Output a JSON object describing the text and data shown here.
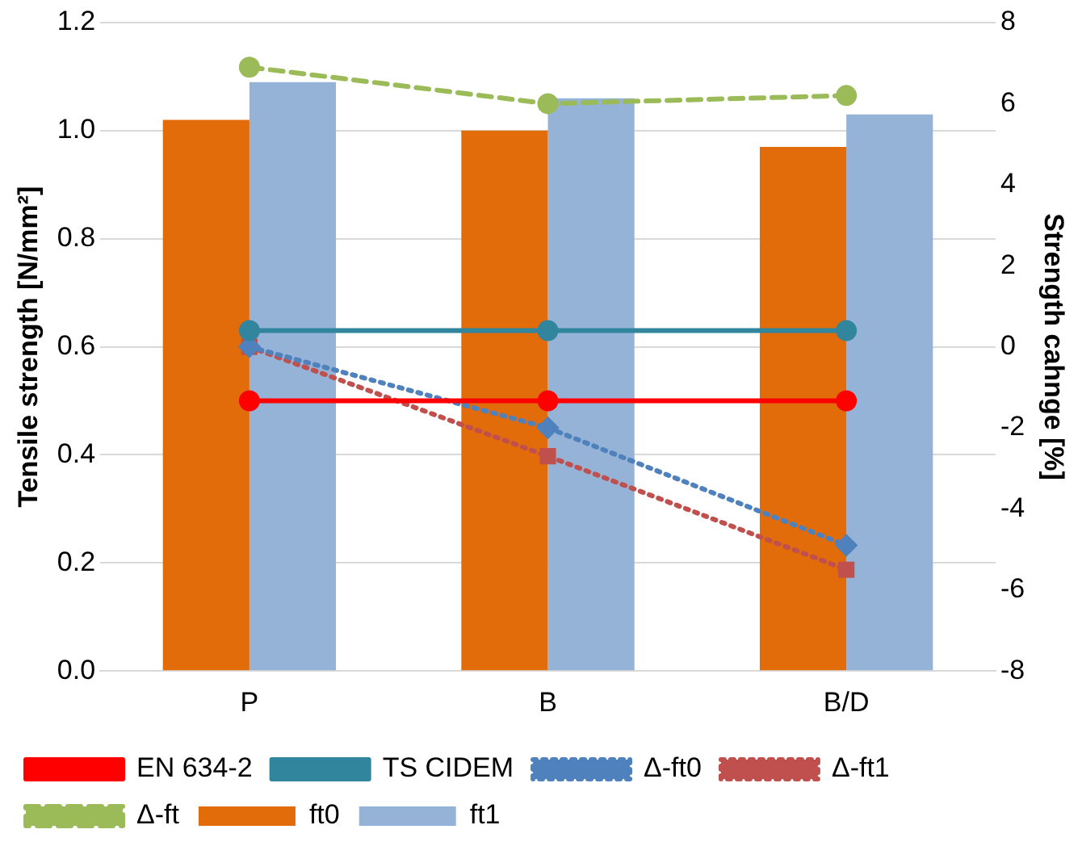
{
  "chart_data": {
    "type": "bar",
    "ylabel": "Tensile strength [N/mm²]",
    "y2label": "Strength cahnge [%]",
    "categories": [
      "P",
      "B",
      "B/D"
    ],
    "series": [
      {
        "name": "ft0",
        "color": "#e36c0a",
        "values": [
          1.02,
          1.0,
          0.97
        ]
      },
      {
        "name": "ft1",
        "color": "#95b3d7",
        "values": [
          1.09,
          1.06,
          1.03
        ]
      },
      {
        "name": "EN 634-2",
        "type": "line",
        "color": "#ff0000",
        "marker": "circle",
        "line_style": "solid",
        "values": [
          0.5,
          0.5,
          0.5
        ]
      },
      {
        "name": "TS CIDEM",
        "type": "line",
        "color": "#31859c",
        "marker": "circle",
        "line_style": "solid",
        "values": [
          0.63,
          0.63,
          0.63
        ]
      },
      {
        "name": "Δ-ft0",
        "type": "line",
        "axis": "y2",
        "color": "#4f81bd",
        "marker": "diamond",
        "line_style": "dotted",
        "values": [
          0,
          -2.0,
          -4.9
        ]
      },
      {
        "name": "Δ-ft1",
        "type": "line",
        "axis": "y2",
        "color": "#c0504d",
        "marker": "square",
        "line_style": "dotted",
        "values": [
          0,
          -2.7,
          -5.5
        ]
      },
      {
        "name": "Δ-ft",
        "type": "line",
        "axis": "y2",
        "color": "#9bbb59",
        "marker": "circle",
        "line_style": "dashed",
        "values": [
          6.9,
          6.0,
          6.2
        ]
      }
    ],
    "ylim": [
      0,
      1.2
    ],
    "yticks": [
      {
        "value": 0,
        "label": "0.0"
      },
      {
        "value": 0.2,
        "label": "0.2"
      },
      {
        "value": 0.4,
        "label": "0.4"
      },
      {
        "value": 0.6,
        "label": "0.6"
      },
      {
        "value": 0.8,
        "label": "0.8"
      },
      {
        "value": 1,
        "label": "1.0"
      },
      {
        "value": 1.2,
        "label": "1.2"
      }
    ],
    "y2lim": [
      -8,
      8
    ],
    "y2ticks": [
      -8,
      -6,
      -4,
      -2,
      0,
      2,
      4,
      6,
      8
    ],
    "grid": "y",
    "legend": "bottom"
  }
}
